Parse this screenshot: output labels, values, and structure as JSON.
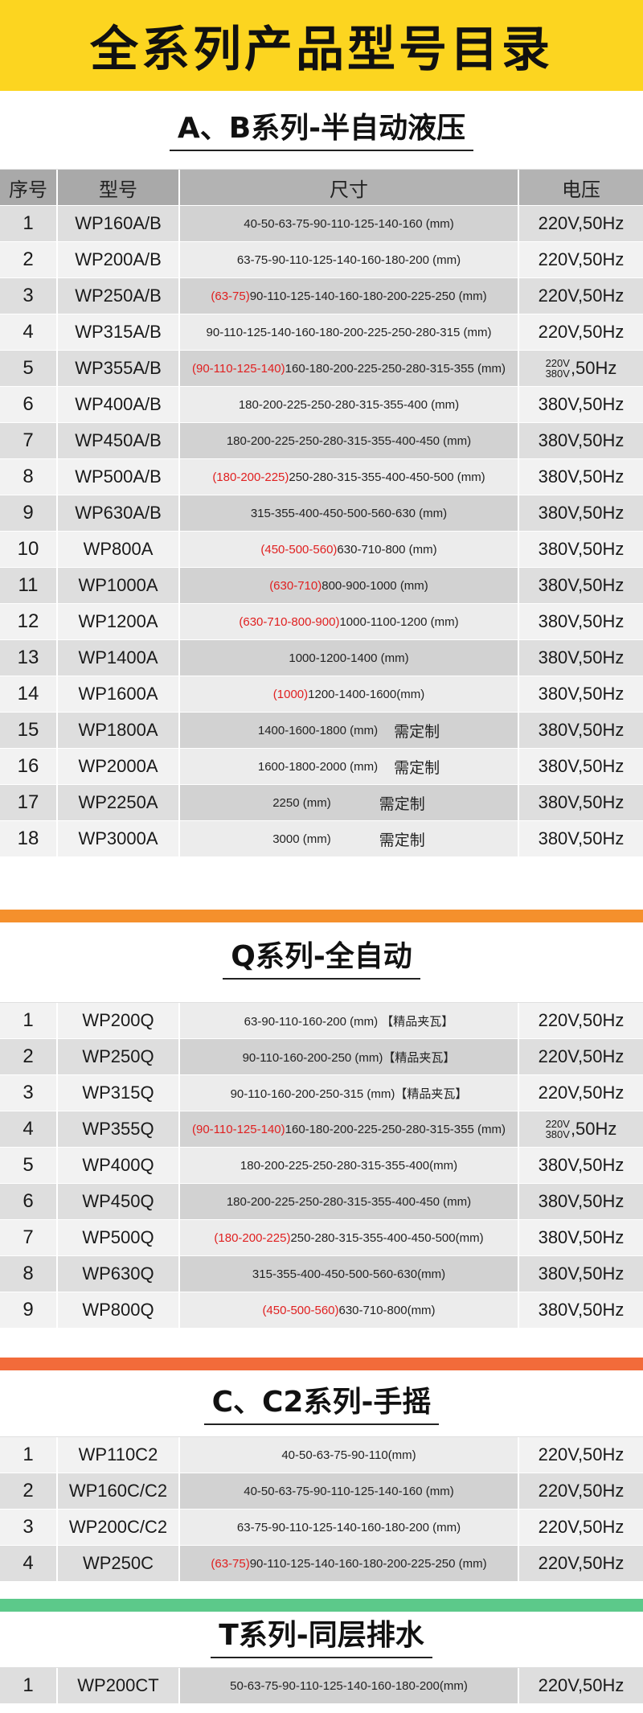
{
  "banner": {
    "title": "全系列产品型号目录"
  },
  "colors": {
    "banner": "#fcd520",
    "divider_orange": "#f5902c",
    "divider_red": "#f26b3a",
    "divider_green": "#5cc98a",
    "highlight": "#e02020"
  },
  "headers": {
    "idx": "序号",
    "model": "型号",
    "size": "尺寸",
    "volt": "电压"
  },
  "sections": {
    "ab": {
      "title": "A、B系列-半自动液压",
      "rows": [
        {
          "idx": "1",
          "model": "WP160A/B",
          "red": "",
          "size": "40-50-63-75-90-110-125-140-160 (mm)",
          "note": "",
          "volt": "220V,50Hz"
        },
        {
          "idx": "2",
          "model": "WP200A/B",
          "red": "",
          "size": "63-75-90-110-125-140-160-180-200 (mm)",
          "note": "",
          "volt": "220V,50Hz"
        },
        {
          "idx": "3",
          "model": "WP250A/B",
          "red": "(63-75)",
          "size": " 90-110-125-140-160-180-200-225-250 (mm)",
          "note": "",
          "volt": "220V,50Hz"
        },
        {
          "idx": "4",
          "model": "WP315A/B",
          "red": "",
          "size": "90-110-125-140-160-180-200-225-250-280-315 (mm)",
          "note": "",
          "volt": "220V,50Hz"
        },
        {
          "idx": "5",
          "model": "WP355A/B",
          "red": "(90-110-125-140)",
          "size": " 160-180-200-225-250-280-315-355 (mm)",
          "note": "",
          "volt_top": "220V",
          "volt_bottom": "380V",
          "volt": ",50Hz"
        },
        {
          "idx": "6",
          "model": "WP400A/B",
          "red": "",
          "size": "180-200-225-250-280-315-355-400 (mm)",
          "note": "",
          "volt": "380V,50Hz"
        },
        {
          "idx": "7",
          "model": "WP450A/B",
          "red": "",
          "size": "180-200-225-250-280-315-355-400-450 (mm)",
          "note": "",
          "volt": "380V,50Hz"
        },
        {
          "idx": "8",
          "model": "WP500A/B",
          "red": "(180-200-225)",
          "size": " 250-280-315-355-400-450-500 (mm)",
          "note": "",
          "volt": "380V,50Hz"
        },
        {
          "idx": "9",
          "model": "WP630A/B",
          "red": "",
          "size": "315-355-400-450-500-560-630 (mm)",
          "note": "",
          "volt": "380V,50Hz"
        },
        {
          "idx": "10",
          "model": "WP800A",
          "red": "(450-500-560)",
          "size": " 630-710-800 (mm)",
          "note": "",
          "volt": "380V,50Hz"
        },
        {
          "idx": "11",
          "model": "WP1000A",
          "red": "(630-710)",
          "size": "800-900-1000 (mm)",
          "note": "",
          "volt": "380V,50Hz"
        },
        {
          "idx": "12",
          "model": "WP1200A",
          "red": "(630-710-800-900)",
          "size": " 1000-1100-1200 (mm)",
          "note": "",
          "volt": "380V,50Hz"
        },
        {
          "idx": "13",
          "model": "WP1400A",
          "red": "",
          "size": "1000-1200-1400 (mm)",
          "note": "",
          "volt": "380V,50Hz"
        },
        {
          "idx": "14",
          "model": "WP1600A",
          "red": "(1000)",
          "size": " 1200-1400-1600(mm)",
          "note": "",
          "volt": "380V,50Hz"
        },
        {
          "idx": "15",
          "model": "WP1800A",
          "red": "",
          "size": "1400-1600-1800 (mm)",
          "note": "需定制",
          "volt": "380V,50Hz"
        },
        {
          "idx": "16",
          "model": "WP2000A",
          "red": "",
          "size": "1600-1800-2000 (mm)",
          "note": "需定制",
          "volt": "380V,50Hz"
        },
        {
          "idx": "17",
          "model": "WP2250A",
          "red": "",
          "size": "2250 (mm)",
          "note": "需定制",
          "volt": "380V,50Hz"
        },
        {
          "idx": "18",
          "model": "WP3000A",
          "red": "",
          "size": "3000 (mm)",
          "note": "需定制",
          "volt": "380V,50Hz"
        }
      ]
    },
    "q": {
      "title": "Q系列-全自动",
      "rows": [
        {
          "idx": "1",
          "model": "WP200Q",
          "red": "",
          "size": "63-90-110-160-200 (mm) 【精品夹瓦】",
          "volt": "220V,50Hz"
        },
        {
          "idx": "2",
          "model": "WP250Q",
          "red": "",
          "size": "90-110-160-200-250 (mm)【精品夹瓦】",
          "volt": "220V,50Hz"
        },
        {
          "idx": "3",
          "model": "WP315Q",
          "red": "",
          "size": "90-110-160-200-250-315 (mm)【精品夹瓦】",
          "volt": "220V,50Hz"
        },
        {
          "idx": "4",
          "model": "WP355Q",
          "red": "(90-110-125-140)",
          "size": " 160-180-200-225-250-280-315-355 (mm)",
          "volt_top": "220V",
          "volt_bottom": "380V",
          "volt": ",50Hz"
        },
        {
          "idx": "5",
          "model": "WP400Q",
          "red": "",
          "size": "180-200-225-250-280-315-355-400(mm)",
          "volt": "380V,50Hz"
        },
        {
          "idx": "6",
          "model": "WP450Q",
          "red": "",
          "size": "180-200-225-250-280-315-355-400-450 (mm)",
          "volt": "380V,50Hz"
        },
        {
          "idx": "7",
          "model": "WP500Q",
          "red": "(180-200-225)",
          "size": " 250-280-315-355-400-450-500(mm)",
          "volt": "380V,50Hz"
        },
        {
          "idx": "8",
          "model": "WP630Q",
          "red": "",
          "size": "315-355-400-450-500-560-630(mm)",
          "volt": "380V,50Hz"
        },
        {
          "idx": "9",
          "model": "WP800Q",
          "red": "(450-500-560)",
          "size": " 630-710-800(mm)",
          "volt": "380V,50Hz"
        }
      ]
    },
    "c": {
      "title": "C、C2系列-手摇",
      "rows": [
        {
          "idx": "1",
          "model": "WP110C2",
          "red": "",
          "size": "40-50-63-75-90-110(mm)",
          "volt": "220V,50Hz"
        },
        {
          "idx": "2",
          "model": "WP160C/C2",
          "red": "",
          "size": "40-50-63-75-90-110-125-140-160 (mm)",
          "volt": "220V,50Hz"
        },
        {
          "idx": "3",
          "model": "WP200C/C2",
          "red": "",
          "size": "63-75-90-110-125-140-160-180-200 (mm)",
          "volt": "220V,50Hz"
        },
        {
          "idx": "4",
          "model": "WP250C",
          "red": "(63-75)",
          "size": "90-110-125-140-160-180-200-225-250 (mm)",
          "volt": "220V,50Hz"
        }
      ]
    },
    "t": {
      "title": "T系列-同层排水",
      "rows": [
        {
          "idx": "1",
          "model": "WP200CT",
          "red": "",
          "size": "50-63-75-90-110-125-140-160-180-200(mm)",
          "volt": "220V,50Hz"
        }
      ]
    }
  }
}
